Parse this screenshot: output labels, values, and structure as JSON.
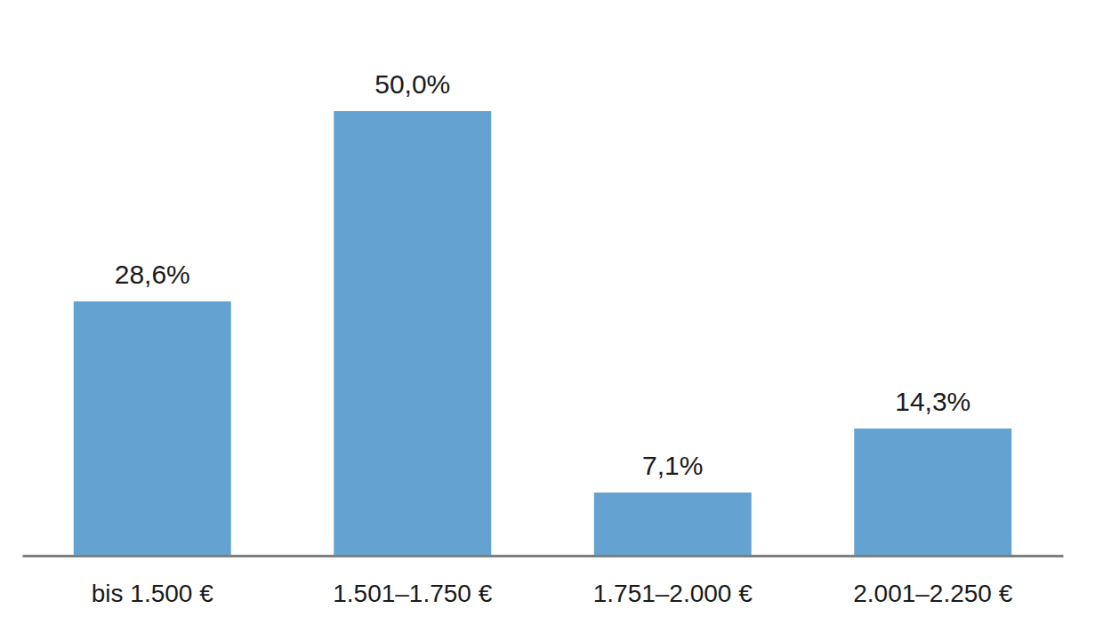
{
  "chart_data": {
    "type": "bar",
    "categories": [
      "bis 1.500 €",
      "1.501–1.750 €",
      "1.751–2.000 €",
      "2.001–2.250 €"
    ],
    "values": [
      28.6,
      50.0,
      7.1,
      14.3
    ],
    "value_labels": [
      "28,6%",
      "50,0%",
      "7,1%",
      "14,3%"
    ],
    "color": "#64a3d1",
    "ylim": [
      0,
      60
    ],
    "data_labels": true,
    "tick_labels": "x",
    "grid": false
  }
}
